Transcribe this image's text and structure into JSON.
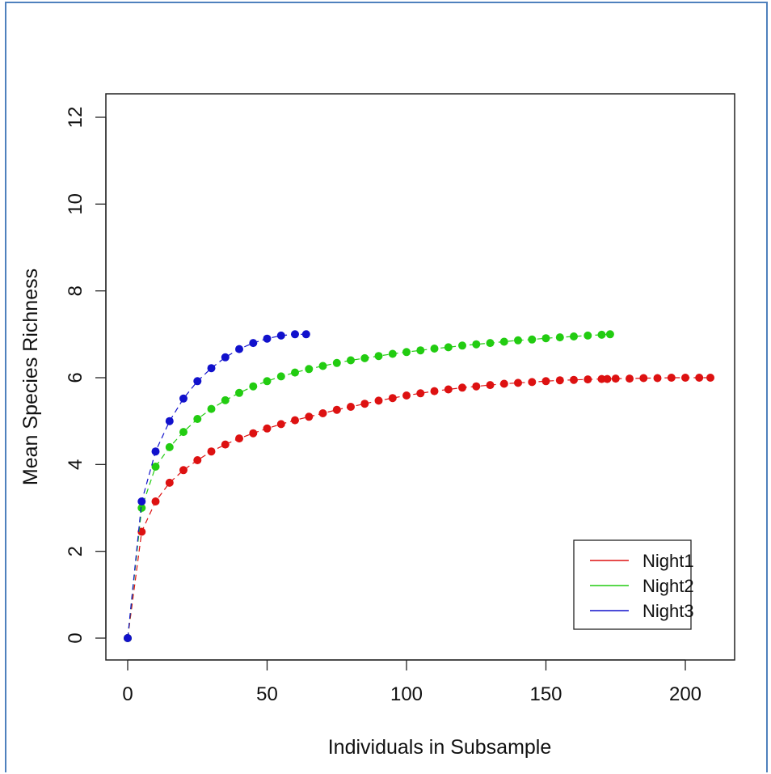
{
  "chart_data": {
    "type": "scatter",
    "title": "",
    "xlabel": "Individuals in Subsample",
    "ylabel": "Mean Species Richness",
    "xlim": [
      0,
      210
    ],
    "ylim": [
      0,
      12
    ],
    "xticks": [
      "0",
      "50",
      "100",
      "150",
      "200"
    ],
    "yticks": [
      "0",
      "2",
      "4",
      "6",
      "8",
      "10",
      "12"
    ],
    "legend_position": "bottom-right",
    "series": [
      {
        "name": "Night1",
        "color": "#dd1111",
        "x": [
          0,
          5,
          10,
          15,
          20,
          25,
          30,
          35,
          40,
          45,
          50,
          55,
          60,
          65,
          70,
          75,
          80,
          85,
          90,
          95,
          100,
          105,
          110,
          115,
          120,
          125,
          130,
          135,
          140,
          145,
          150,
          155,
          160,
          165,
          170,
          172,
          175,
          180,
          185,
          190,
          195,
          200,
          205,
          209
        ],
        "y": [
          0,
          2.45,
          3.15,
          3.58,
          3.87,
          4.1,
          4.3,
          4.46,
          4.6,
          4.72,
          4.83,
          4.93,
          5.02,
          5.1,
          5.18,
          5.26,
          5.33,
          5.4,
          5.47,
          5.53,
          5.59,
          5.64,
          5.69,
          5.73,
          5.77,
          5.8,
          5.83,
          5.86,
          5.88,
          5.9,
          5.92,
          5.94,
          5.95,
          5.96,
          5.97,
          5.97,
          5.98,
          5.98,
          5.99,
          5.99,
          6.0,
          6.0,
          6.0,
          6.0
        ]
      },
      {
        "name": "Night2",
        "color": "#22cc11",
        "x": [
          0,
          5,
          10,
          15,
          20,
          25,
          30,
          35,
          40,
          45,
          50,
          55,
          60,
          65,
          70,
          75,
          80,
          85,
          90,
          95,
          100,
          105,
          110,
          115,
          120,
          125,
          130,
          135,
          140,
          145,
          150,
          155,
          160,
          165,
          170,
          173
        ],
        "y": [
          0,
          3.0,
          3.95,
          4.4,
          4.75,
          5.05,
          5.28,
          5.48,
          5.65,
          5.8,
          5.92,
          6.03,
          6.12,
          6.2,
          6.27,
          6.34,
          6.4,
          6.45,
          6.5,
          6.55,
          6.59,
          6.63,
          6.67,
          6.7,
          6.74,
          6.77,
          6.8,
          6.83,
          6.86,
          6.88,
          6.91,
          6.93,
          6.95,
          6.97,
          6.99,
          7.0
        ]
      },
      {
        "name": "Night3",
        "color": "#1111cc",
        "x": [
          0,
          5,
          10,
          15,
          20,
          25,
          30,
          35,
          40,
          45,
          50,
          55,
          60,
          64
        ],
        "y": [
          0,
          3.15,
          4.3,
          5.0,
          5.52,
          5.92,
          6.22,
          6.47,
          6.66,
          6.8,
          6.9,
          6.97,
          7.0,
          7.0
        ]
      }
    ]
  }
}
